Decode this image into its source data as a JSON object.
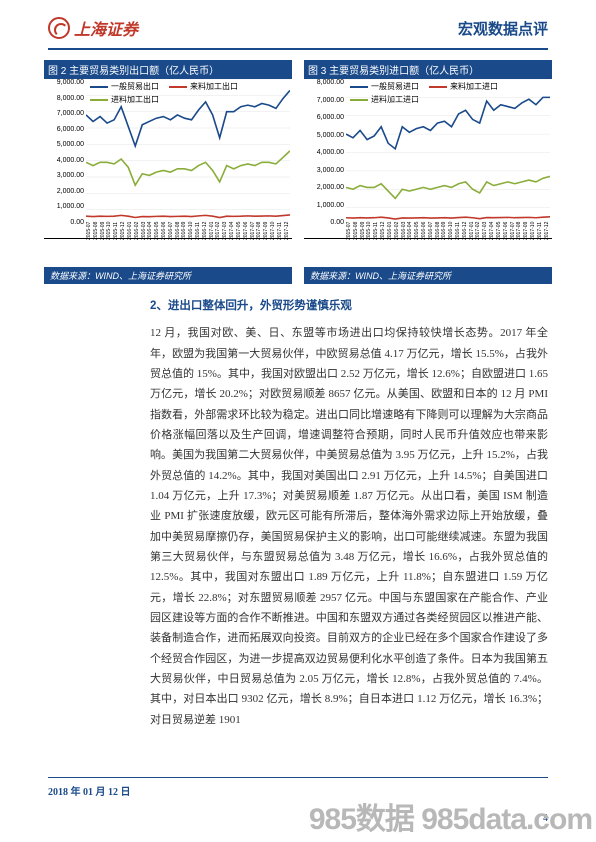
{
  "header": {
    "logo_text": "上海证券",
    "doc_title": "宏观数据点评"
  },
  "chart2": {
    "type": "line",
    "title": "图 2 主要贸易类别出口额（亿人民币）",
    "ylim": [
      0,
      9000
    ],
    "ytick_step": 1000,
    "y_labels": [
      "9,000.00",
      "8,000.00",
      "7,000.00",
      "6,000.00",
      "5,000.00",
      "4,000.00",
      "3,000.00",
      "2,000.00",
      "1,000.00",
      "0.00"
    ],
    "x_labels": [
      "2015-07",
      "2015-08",
      "2015-09",
      "2015-10",
      "2015-11",
      "2015-12",
      "2016-01",
      "2016-02",
      "2016-03",
      "2016-04",
      "2016-05",
      "2016-06",
      "2016-07",
      "2016-08",
      "2016-09",
      "2016-10",
      "2016-11",
      "2016-12",
      "2017-01",
      "2017-02",
      "2017-03",
      "2017-04",
      "2017-05",
      "2017-06",
      "2017-07",
      "2017-08",
      "2017-09",
      "2017-10",
      "2017-11",
      "2017-12"
    ],
    "legend": [
      {
        "label": "一般贸易出口",
        "color": "#1a4a8a"
      },
      {
        "label": "来料加工出口",
        "color": "#c0392b"
      },
      {
        "label": "进料加工出口",
        "color": "#8aad3a"
      }
    ],
    "series": {
      "general": {
        "color": "#1a4a8a",
        "width": 1.6,
        "values": [
          6800,
          6400,
          6700,
          6300,
          6500,
          7300,
          6100,
          4900,
          6200,
          6400,
          6600,
          6700,
          6500,
          6800,
          6600,
          6500,
          7100,
          7600,
          6800,
          5400,
          7000,
          7000,
          7300,
          7400,
          7300,
          7500,
          7400,
          7200,
          7800,
          8300
        ]
      },
      "incoming": {
        "color": "#c0392b",
        "width": 1.6,
        "values": [
          600,
          580,
          600,
          590,
          600,
          650,
          600,
          520,
          580,
          570,
          590,
          600,
          580,
          590,
          600,
          580,
          620,
          650,
          600,
          520,
          600,
          590,
          600,
          620,
          600,
          610,
          620,
          600,
          640,
          680
        ]
      },
      "feed": {
        "color": "#8aad3a",
        "width": 1.6,
        "values": [
          3900,
          3700,
          3900,
          3900,
          3800,
          4100,
          3600,
          2500,
          3200,
          3100,
          3300,
          3400,
          3300,
          3500,
          3500,
          3400,
          3700,
          3900,
          3400,
          2700,
          3700,
          3500,
          3700,
          3800,
          3700,
          3900,
          3900,
          3800,
          4200,
          4600
        ]
      }
    },
    "background_color": "#ffffff",
    "grid_color": "#e6e6e6",
    "label_fontsize": 7,
    "source": "数据来源：WIND、上海证券研究所"
  },
  "chart3": {
    "type": "line",
    "title": "图 3 主要贸易类别进口额（亿人民币）",
    "ylim": [
      0,
      8000
    ],
    "ytick_step": 1000,
    "y_labels": [
      "8,000.00",
      "7,000.00",
      "6,000.00",
      "5,000.00",
      "4,000.00",
      "3,000.00",
      "2,000.00",
      "1,000.00",
      "0.00"
    ],
    "x_labels": [
      "2015-07",
      "2015-08",
      "2015-09",
      "2015-10",
      "2015-11",
      "2015-12",
      "2016-01",
      "2016-02",
      "2016-03",
      "2016-04",
      "2016-05",
      "2016-06",
      "2016-07",
      "2016-08",
      "2016-09",
      "2016-10",
      "2016-11",
      "2016-12",
      "2017-01",
      "2017-02",
      "2017-03",
      "2017-04",
      "2017-05",
      "2017-06",
      "2017-07",
      "2017-08",
      "2017-09",
      "2017-10",
      "2017-11",
      "2017-12"
    ],
    "legend": [
      {
        "label": "一般贸易进口",
        "color": "#1a4a8a"
      },
      {
        "label": "来料加工进口",
        "color": "#c0392b"
      },
      {
        "label": "进料加工进口",
        "color": "#8aad3a"
      }
    ],
    "series": {
      "general": {
        "color": "#1a4a8a",
        "width": 1.6,
        "values": [
          5000,
          4800,
          5200,
          4700,
          4900,
          5400,
          4500,
          4200,
          5400,
          5100,
          5300,
          5400,
          5200,
          5600,
          5700,
          5400,
          6100,
          6300,
          5800,
          5600,
          6800,
          6300,
          6600,
          6500,
          6400,
          6700,
          6900,
          6600,
          7000,
          7000
        ]
      },
      "incoming": {
        "color": "#c0392b",
        "width": 1.6,
        "values": [
          450,
          430,
          450,
          440,
          450,
          480,
          440,
          380,
          440,
          430,
          440,
          450,
          430,
          440,
          450,
          430,
          460,
          480,
          450,
          400,
          460,
          450,
          460,
          470,
          450,
          460,
          470,
          450,
          480,
          500
        ]
      },
      "feed": {
        "color": "#8aad3a",
        "width": 1.6,
        "values": [
          2100,
          2000,
          2200,
          2100,
          2100,
          2300,
          1900,
          1500,
          2000,
          1900,
          2000,
          2100,
          2000,
          2100,
          2200,
          2100,
          2300,
          2400,
          2000,
          1800,
          2400,
          2200,
          2300,
          2400,
          2300,
          2400,
          2500,
          2400,
          2600,
          2700
        ]
      }
    },
    "background_color": "#ffffff",
    "grid_color": "#e6e6e6",
    "label_fontsize": 7,
    "source": "数据来源：WIND、上海证券研究所"
  },
  "section": {
    "heading": "2、进出口整体回升，外贸形势谨慎乐观",
    "body": "12 月，我国对欧、美、日、东盟等市场进出口均保持较快增长态势。2017 年全年，欧盟为我国第一大贸易伙伴，中欧贸易总值 4.17 万亿元，增长 15.5%，占我外贸总值的 15%。其中，我国对欧盟出口 2.52 万亿元，增长 12.6%；自欧盟进口 1.65 万亿元，增长 20.2%；对欧贸易顺差 8657 亿元。从美国、欧盟和日本的 12 月 PMI 指数看，外部需求环比较为稳定。进出口同比增速略有下降则可以理解为大宗商品价格涨幅回落以及生产回调，增速调整符合预期，同时人民币升值效应也带来影响。美国为我国第二大贸易伙伴，中美贸易总值为 3.95 万亿元，上升 15.2%，占我外贸总值的 14.2%。其中，我国对美国出口 2.91 万亿元，上升 14.5%；自美国进口 1.04 万亿元，上升 17.3%；对美贸易顺差 1.87 万亿元。从出口看，美国 ISM 制造业 PMI 扩张速度放缓，欧元区可能有所滞后，整体海外需求边际上开始放缓，叠加中美贸易摩擦仍存，美国贸易保护主义的影响，出口可能继续减速。东盟为我国第三大贸易伙伴，与东盟贸易总值为 3.48 万亿元，增长 16.6%，占我外贸总值的 12.5%。其中，我国对东盟出口 1.89 万亿元，上升 11.8%；自东盟进口 1.59 万亿元，增长 22.8%；对东盟贸易顺差 2957 亿元。中国与东盟国家在产能合作、产业园区建设等方面的合作不断推进。中国和东盟双方通过各类经贸园区以推进产能、装备制造合作，进而拓展双向投资。目前双方的企业已经在多个国家合作建设了多个经贸合作园区，为进一步提高双边贸易便利化水平创造了条件。日本为我国第五大贸易伙伴，中日贸易总值为 2.05 万亿元，增长 12.8%，占我外贸总值的 7.4%。其中，对日本出口 9302 亿元，增长 8.9%；自日本进口 1.12 万亿元，增长 16.3%；对日贸易逆差 1901"
  },
  "footer": {
    "date": "2018 年 01 月 12 日",
    "page": "4"
  },
  "watermark": "985数据 985data.com"
}
